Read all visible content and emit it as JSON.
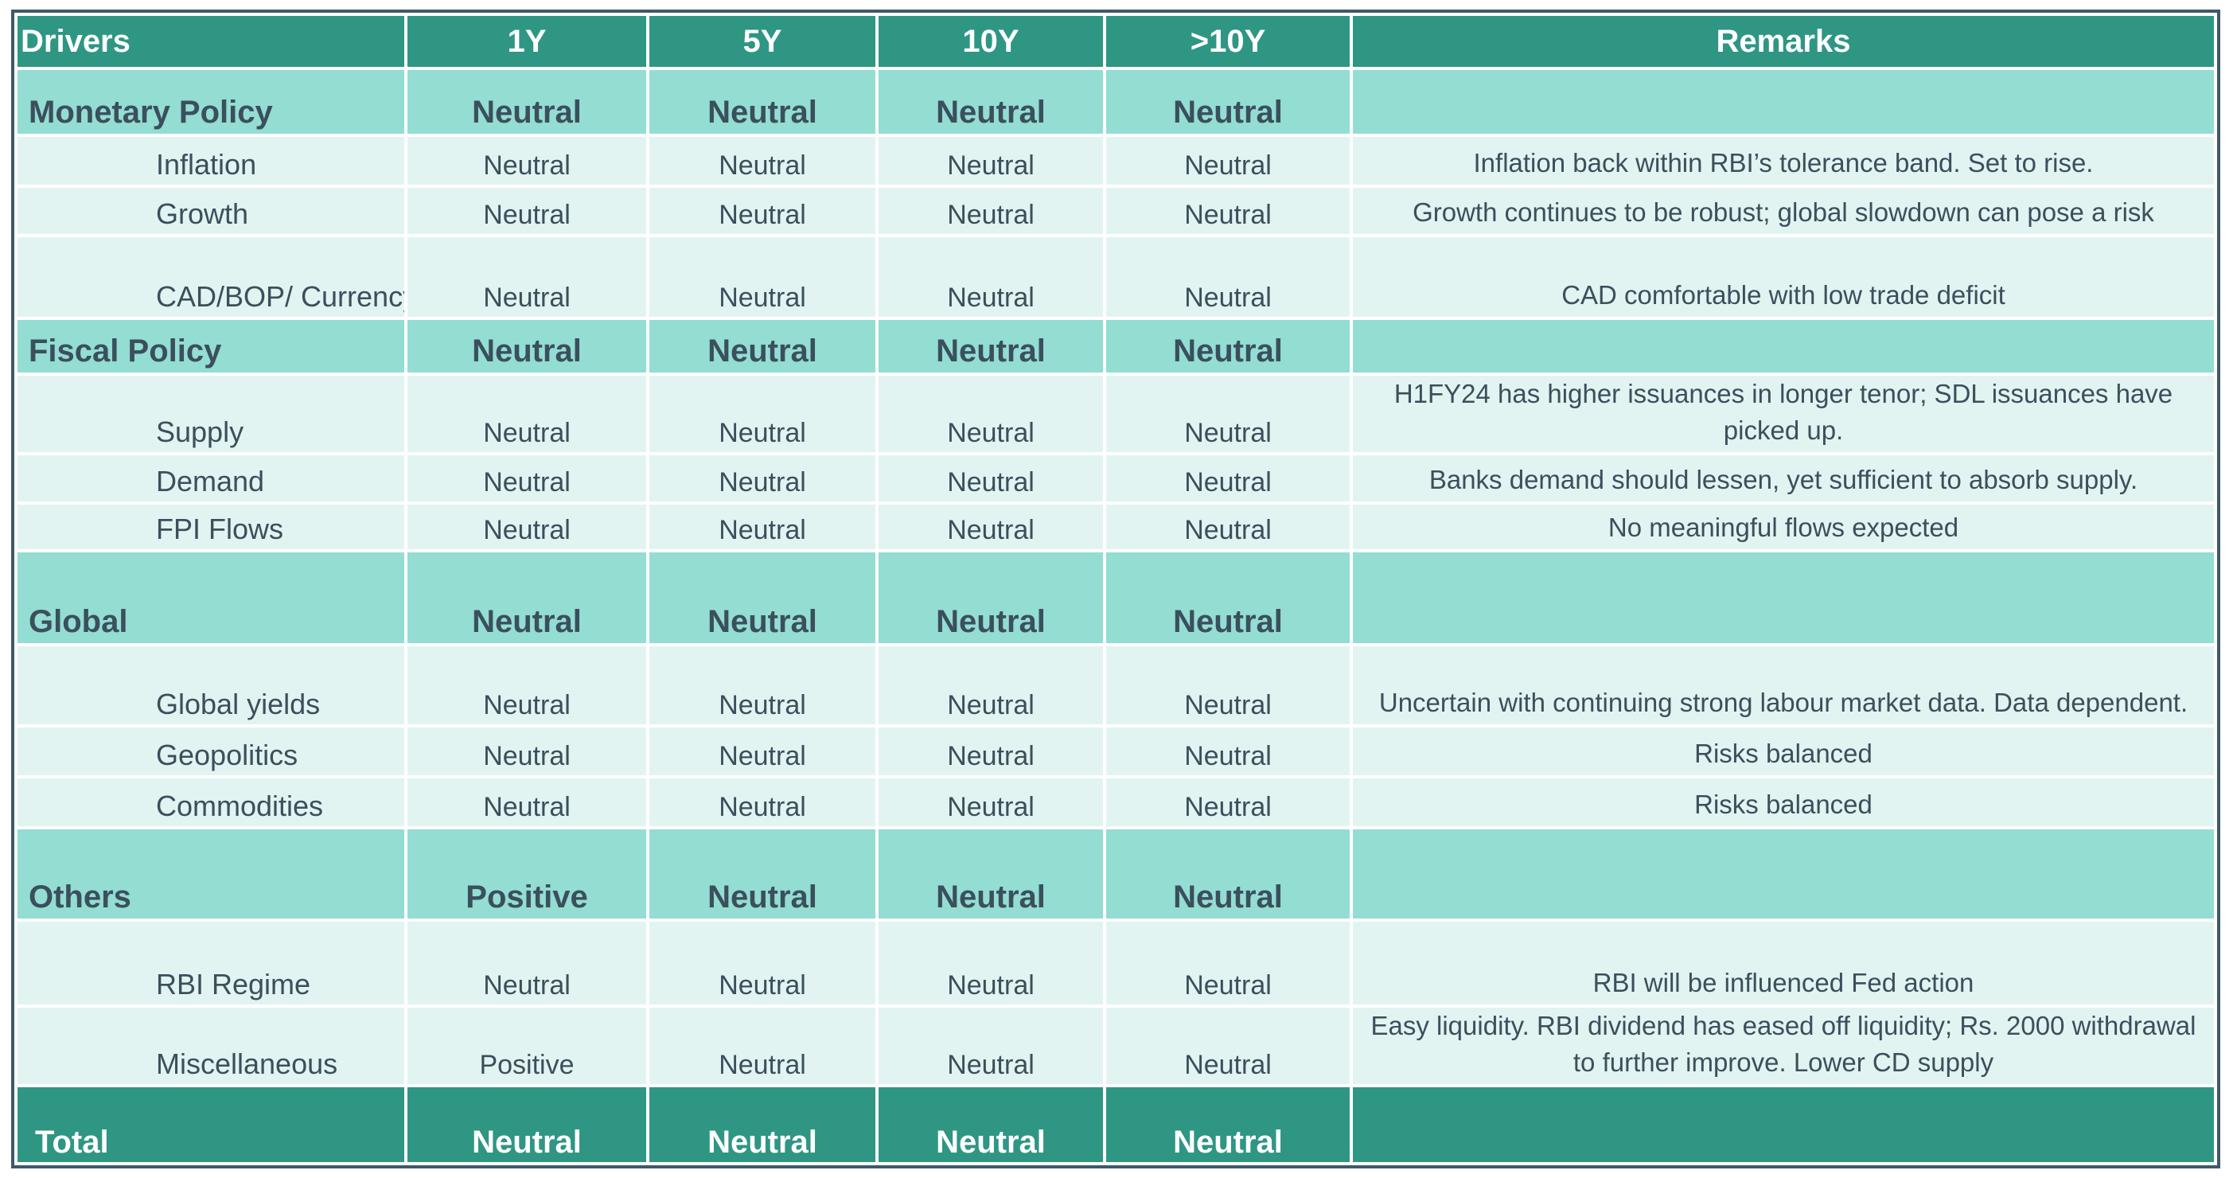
{
  "header": {
    "drivers": "Drivers",
    "col_1y": "1Y",
    "col_5y": "5Y",
    "col_10y": "10Y",
    "col_gt10y": ">10Y",
    "remarks": "Remarks"
  },
  "rows": [
    {
      "label": "Monetary Policy",
      "y1": "Neutral",
      "y5": "Neutral",
      "y10": "Neutral",
      "ygt10": "Neutral",
      "remark": ""
    },
    {
      "label": "Inflation",
      "y1": "Neutral",
      "y5": "Neutral",
      "y10": "Neutral",
      "ygt10": "Neutral",
      "remark": "Inflation back within RBI’s tolerance band. Set to rise."
    },
    {
      "label": "Growth",
      "y1": "Neutral",
      "y5": "Neutral",
      "y10": "Neutral",
      "ygt10": "Neutral",
      "remark": "Growth continues to be robust; global slowdown can pose a risk"
    },
    {
      "label": "CAD/BOP/ Currency",
      "y1": "Neutral",
      "y5": "Neutral",
      "y10": "Neutral",
      "ygt10": "Neutral",
      "remark": "CAD comfortable with low trade deficit"
    },
    {
      "label": "Fiscal Policy",
      "y1": "Neutral",
      "y5": "Neutral",
      "y10": "Neutral",
      "ygt10": "Neutral",
      "remark": ""
    },
    {
      "label": "Supply",
      "y1": "Neutral",
      "y5": "Neutral",
      "y10": "Neutral",
      "ygt10": "Neutral",
      "remark": "H1FY24 has higher issuances in longer tenor; SDL issuances have picked up."
    },
    {
      "label": "Demand",
      "y1": "Neutral",
      "y5": "Neutral",
      "y10": "Neutral",
      "ygt10": "Neutral",
      "remark": "Banks demand should lessen, yet sufficient to absorb supply."
    },
    {
      "label": "FPI Flows",
      "y1": "Neutral",
      "y5": "Neutral",
      "y10": "Neutral",
      "ygt10": "Neutral",
      "remark": "No meaningful flows expected"
    },
    {
      "label": "Global",
      "y1": "Neutral",
      "y5": "Neutral",
      "y10": "Neutral",
      "ygt10": "Neutral",
      "remark": ""
    },
    {
      "label": "Global yields",
      "y1": "Neutral",
      "y5": "Neutral",
      "y10": "Neutral",
      "ygt10": "Neutral",
      "remark": "Uncertain with continuing strong labour market data. Data dependent."
    },
    {
      "label": "Geopolitics",
      "y1": "Neutral",
      "y5": "Neutral",
      "y10": "Neutral",
      "ygt10": "Neutral",
      "remark": "Risks balanced"
    },
    {
      "label": "Commodities",
      "y1": "Neutral",
      "y5": "Neutral",
      "y10": "Neutral",
      "ygt10": "Neutral",
      "remark": "Risks balanced"
    },
    {
      "label": "Others",
      "y1": "Positive",
      "y5": "Neutral",
      "y10": "Neutral",
      "ygt10": "Neutral",
      "remark": ""
    },
    {
      "label": "RBI Regime",
      "y1": "Neutral",
      "y5": "Neutral",
      "y10": "Neutral",
      "ygt10": "Neutral",
      "remark": "RBI will be influenced Fed action"
    },
    {
      "label": "Miscellaneous",
      "y1": "Positive",
      "y5": "Neutral",
      "y10": "Neutral",
      "ygt10": "Neutral",
      "remark": "Easy liquidity. RBI dividend has eased off liquidity; Rs. 2000 withdrawal to further improve. Lower CD supply"
    },
    {
      "label": "Total",
      "y1": "Neutral",
      "y5": "Neutral",
      "y10": "Neutral",
      "ygt10": "Neutral",
      "remark": ""
    }
  ],
  "colors": {
    "header_bg": "#2f9684",
    "category_bg": "#93ddd2",
    "row_bg": "#e2f4f1",
    "text": "#3b4f5c"
  }
}
